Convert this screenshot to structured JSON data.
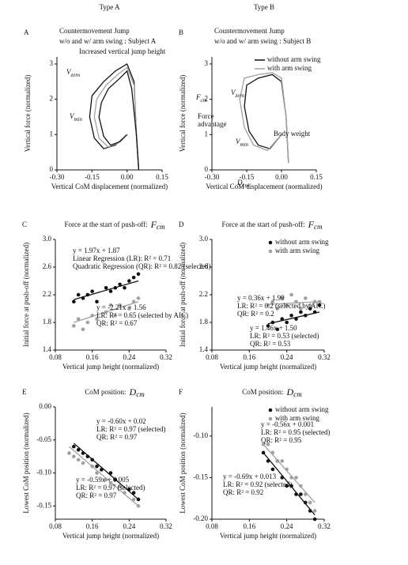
{
  "chart_data": [
    {
      "type": "line",
      "panel": "A",
      "header": "Type A",
      "title_lines": [
        "Countermovement Jump",
        "w/o and w/ arm swing : Subject A"
      ],
      "xlabel": "Vertical CoM displacement (normalized)",
      "ylabel": "Vertical force (normalized)",
      "xlim": [
        -0.3,
        0.15
      ],
      "ylim": [
        0,
        3.2
      ],
      "xticks": [
        {
          "value": -0.3,
          "label": "-0.30"
        },
        {
          "value": -0.15,
          "label": "-0.15"
        },
        {
          "value": 0,
          "label": "0.00"
        },
        {
          "value": 0.15,
          "label": "0.15"
        }
      ],
      "yticks": [
        0,
        1,
        2,
        3
      ],
      "series": [
        {
          "color": "#111111",
          "x": [
            0,
            -0.05,
            -0.1,
            -0.14,
            -0.16,
            -0.15,
            -0.1,
            -0.05,
            0,
            0.03,
            0.04,
            0.05
          ],
          "values": [
            1,
            0.7,
            0.6,
            0.9,
            1.5,
            2.1,
            2.5,
            2.8,
            3.0,
            2.5,
            1.0,
            0
          ]
        },
        {
          "color": "#a0a0a0",
          "x": [
            0,
            -0.04,
            -0.08,
            -0.12,
            -0.14,
            -0.13,
            -0.09,
            -0.04,
            0,
            0.03,
            0.04,
            0.05
          ],
          "values": [
            1,
            0.75,
            0.65,
            0.9,
            1.5,
            2.0,
            2.4,
            2.7,
            2.9,
            2.4,
            1.0,
            0
          ]
        },
        {
          "color": "#111111",
          "x": [
            0,
            -0.03,
            -0.07,
            -0.1,
            -0.12,
            -0.11,
            -0.08,
            -0.03,
            0,
            0.02,
            0.04,
            0.05
          ],
          "values": [
            1,
            0.8,
            0.7,
            0.95,
            1.5,
            1.9,
            2.3,
            2.6,
            2.8,
            2.3,
            1.0,
            0
          ]
        }
      ],
      "annotations": [
        {
          "text": "Increased vertical jump height"
        },
        {
          "text": "V",
          "sub": "zero"
        },
        {
          "text": "V",
          "sub": "min"
        }
      ]
    },
    {
      "type": "line",
      "panel": "B",
      "header": "Type B",
      "title_lines": [
        "Countermovement Jump",
        "w/o and w/ arm swing : Subject B"
      ],
      "xlabel": "Vertical CoM displacement (normalized)",
      "ylabel": "Vertical force (normalized)",
      "xlim": [
        -0.3,
        0.15
      ],
      "ylim": [
        0,
        3.2
      ],
      "xticks": [
        {
          "value": -0.3,
          "label": "-0.30"
        },
        {
          "value": -0.15,
          "label": "-0.15"
        },
        {
          "value": 0,
          "label": "0.00"
        },
        {
          "value": 0.15,
          "label": "0.15"
        }
      ],
      "yticks": [
        0,
        1,
        2,
        3
      ],
      "legend": "upper right",
      "series": [
        {
          "name": "without arm swing",
          "color": "#111111",
          "x": [
            0,
            -0.05,
            -0.1,
            -0.14,
            -0.16,
            -0.15,
            -0.1,
            -0.04,
            0,
            0.02,
            0.03
          ],
          "values": [
            1,
            0.6,
            0.7,
            1.1,
            1.8,
            2.4,
            2.6,
            2.7,
            2.5,
            1.5,
            0.2
          ]
        },
        {
          "name": "with arm swing",
          "color": "#a0a0a0",
          "x": [
            0,
            -0.06,
            -0.12,
            -0.16,
            -0.18,
            -0.16,
            -0.1,
            -0.04,
            0,
            0.02,
            0.03
          ],
          "values": [
            1,
            0.55,
            0.7,
            1.2,
            2.0,
            2.6,
            2.7,
            2.75,
            2.6,
            1.5,
            0.2
          ]
        }
      ],
      "annotations": [
        {
          "text": "F",
          "sub": "cm"
        },
        {
          "text": "V",
          "sub": "zero"
        },
        {
          "text": "Force"
        },
        {
          "text": "advantage"
        },
        {
          "text": "V",
          "sub": "min"
        },
        {
          "text": "Body weight"
        },
        {
          "text": "D",
          "sub": "cm"
        }
      ]
    },
    {
      "type": "scatter",
      "panel": "C",
      "title": "Force at the start of push-off:",
      "title_symbol": {
        "text": "F",
        "sub": "cm"
      },
      "xlabel": "Vertical jump height (normalized)",
      "ylabel": "Initial force at push-off (normalized)",
      "xlim": [
        0.08,
        0.32
      ],
      "ylim": [
        1.4,
        3.0
      ],
      "xticks": [
        0.08,
        0.16,
        0.24,
        0.32
      ],
      "yticks": [
        1.4,
        1.8,
        2.2,
        2.6,
        {
          "value": 3.0,
          "label": "3.0"
        }
      ],
      "series": [
        {
          "color": "#111111",
          "x": [
            0.12,
            0.13,
            0.14,
            0.15,
            0.16,
            0.17,
            0.19,
            0.2,
            0.21,
            0.22,
            0.23,
            0.24,
            0.25,
            0.26
          ],
          "values": [
            2.1,
            2.2,
            2.15,
            2.2,
            2.25,
            2.1,
            2.3,
            2.25,
            2.3,
            2.35,
            2.3,
            2.4,
            2.45,
            2.5
          ]
        },
        {
          "color": "#a0a0a0",
          "x": [
            0.12,
            0.13,
            0.14,
            0.15,
            0.16,
            0.17,
            0.19,
            0.2,
            0.21,
            0.22,
            0.24,
            0.25,
            0.26
          ],
          "values": [
            1.75,
            1.85,
            1.7,
            1.8,
            1.9,
            1.85,
            1.95,
            2.05,
            1.9,
            2.05,
            2.0,
            2.1,
            2.15
          ]
        }
      ],
      "fit_lines": [
        {
          "color": "#111111",
          "x": [
            0.12,
            0.26
          ],
          "values": [
            2.13,
            2.4
          ]
        },
        {
          "color": "#a0a0a0",
          "x": [
            0.12,
            0.26
          ],
          "values": [
            1.8,
            2.1
          ]
        }
      ],
      "annotations": [
        {
          "text": "y = 1.97x + 1.87"
        },
        {
          "text": "Linear Regression (LR): R² = 0.71"
        },
        {
          "text": "Quadratic Regression (QR): R² = 0.82 (selected)"
        },
        {
          "text": "y = -2.21x + 1.56"
        },
        {
          "text": "LR: R² = 0.65 (selected by AIC)"
        },
        {
          "text": "QR: R² = 0.67"
        }
      ]
    },
    {
      "type": "scatter",
      "panel": "D",
      "title": "Force at the start of push-off:",
      "title_symbol": {
        "text": "F",
        "sub": "cm"
      },
      "xlabel": "Vertical jump height (normalized)",
      "ylabel": "Initial force at push-off (normalized)",
      "xlim": [
        0.08,
        0.32
      ],
      "ylim": [
        1.4,
        3.0
      ],
      "xticks": [
        0.08,
        0.16,
        0.24,
        0.32
      ],
      "yticks": [
        1.4,
        1.8,
        2.2,
        2.6,
        {
          "value": 3.0,
          "label": "3.0"
        }
      ],
      "legend": "upper right",
      "series": [
        {
          "name": "without arm swing",
          "color": "#111111",
          "x": [
            0.2,
            0.21,
            0.22,
            0.23,
            0.24,
            0.25,
            0.26,
            0.27,
            0.28,
            0.29,
            0.3,
            0.31
          ],
          "values": [
            1.75,
            1.8,
            1.7,
            1.85,
            1.8,
            1.9,
            1.85,
            1.95,
            1.9,
            2.0,
            1.95,
            2.05
          ]
        },
        {
          "name": "with arm swing",
          "color": "#a0a0a0",
          "x": [
            0.2,
            0.21,
            0.22,
            0.23,
            0.24,
            0.25,
            0.26,
            0.27,
            0.28,
            0.29,
            0.3,
            0.31
          ],
          "values": [
            2.05,
            2.1,
            2.0,
            2.15,
            2.05,
            2.2,
            2.1,
            2.0,
            2.15,
            2.05,
            2.1,
            2.1
          ]
        }
      ],
      "fit_lines": [
        {
          "color": "#111111",
          "x": [
            0.2,
            0.31
          ],
          "values": [
            1.78,
            1.95
          ]
        },
        {
          "color": "#a0a0a0",
          "x": [
            0.2,
            0.31
          ],
          "values": [
            2.06,
            2.1
          ]
        }
      ],
      "annotations": [
        {
          "text": "y = 0.36x + 1.99"
        },
        {
          "text": "LR: R² = 0.2 (selected by AIC)"
        },
        {
          "text": "QR: R² = 0.2"
        },
        {
          "text": "y = 1.46x + 1.50"
        },
        {
          "text": "LR: R² = 0.53 (selected)"
        },
        {
          "text": "QR: R² = 0.53"
        }
      ]
    },
    {
      "type": "scatter",
      "panel": "E",
      "title": "CoM position:",
      "title_symbol": {
        "text": "D",
        "sub": "cm"
      },
      "xlabel": "Vertical jump height (normalized)",
      "ylabel": "Lowest CoM position (normalized)",
      "xlim": [
        0.08,
        0.32
      ],
      "ylim": [
        -0.17,
        0
      ],
      "xticks": [
        0.08,
        0.16,
        0.24,
        0.32
      ],
      "yticks": [
        {
          "value": 0,
          "label": "0.00"
        },
        {
          "value": -0.05,
          "label": "-0.05"
        },
        {
          "value": -0.1,
          "label": "-0.10"
        },
        {
          "value": -0.15,
          "label": "-0.15"
        }
      ],
      "series": [
        {
          "color": "#111111",
          "x": [
            0.12,
            0.13,
            0.14,
            0.15,
            0.16,
            0.17,
            0.18,
            0.2,
            0.21,
            0.22,
            0.24,
            0.25,
            0.26
          ],
          "values": [
            -0.06,
            -0.065,
            -0.07,
            -0.075,
            -0.08,
            -0.09,
            -0.095,
            -0.1,
            -0.11,
            -0.12,
            -0.125,
            -0.13,
            -0.14
          ]
        },
        {
          "color": "#a0a0a0",
          "x": [
            0.11,
            0.12,
            0.13,
            0.14,
            0.16,
            0.17,
            0.19,
            0.2,
            0.22,
            0.23,
            0.25,
            0.26
          ],
          "values": [
            -0.07,
            -0.075,
            -0.08,
            -0.085,
            -0.09,
            -0.1,
            -0.11,
            -0.115,
            -0.12,
            -0.13,
            -0.14,
            -0.15
          ]
        }
      ],
      "fit_lines": [
        {
          "color": "#111111",
          "x": [
            0.12,
            0.26
          ],
          "values": [
            -0.055,
            -0.14
          ]
        },
        {
          "color": "#a0a0a0",
          "x": [
            0.11,
            0.26
          ],
          "values": [
            -0.06,
            -0.15
          ]
        }
      ],
      "annotations": [
        {
          "text": "y = -0.60x + 0.02"
        },
        {
          "text": "LR: R² = 0.97 (selected)"
        },
        {
          "text": "QR: R² = 0.97"
        },
        {
          "text": "y = -0.59x + 0.005"
        },
        {
          "text": "LR: R² = 0.97 (selected)"
        },
        {
          "text": "QR: R² = 0.97"
        }
      ]
    },
    {
      "type": "scatter",
      "panel": "F",
      "title": "CoM position:",
      "title_symbol": {
        "text": "D",
        "sub": "cm"
      },
      "xlabel": "Vertical jump height (normalized)",
      "ylabel": "Lowest CoM position (normalized)",
      "xlim": [
        0.08,
        0.32
      ],
      "ylim": [
        -0.2,
        -0.065
      ],
      "xticks": [
        0.08,
        0.16,
        0.24,
        0.32
      ],
      "yticks": [
        {
          "value": -0.1,
          "label": "-0.10"
        },
        {
          "value": -0.15,
          "label": "-0.15"
        },
        {
          "value": -0.2,
          "label": "-0.20"
        }
      ],
      "legend": "upper right",
      "series": [
        {
          "name": "without arm swing",
          "color": "#111111",
          "x": [
            0.19,
            0.2,
            0.21,
            0.22,
            0.23,
            0.24,
            0.25,
            0.26,
            0.27,
            0.28,
            0.29,
            0.3
          ],
          "values": [
            -0.12,
            -0.13,
            -0.14,
            -0.13,
            -0.15,
            -0.16,
            -0.16,
            -0.17,
            -0.17,
            -0.18,
            -0.19,
            -0.2
          ]
        },
        {
          "name": "with arm swing",
          "color": "#a0a0a0",
          "x": [
            0.19,
            0.2,
            0.21,
            0.22,
            0.23,
            0.24,
            0.25,
            0.26,
            0.27,
            0.28,
            0.29,
            0.3
          ],
          "values": [
            -0.11,
            -0.11,
            -0.12,
            -0.13,
            -0.13,
            -0.14,
            -0.15,
            -0.15,
            -0.16,
            -0.17,
            -0.18,
            -0.19
          ]
        }
      ],
      "fit_lines": [
        {
          "color": "#111111",
          "x": [
            0.19,
            0.3
          ],
          "values": [
            -0.12,
            -0.195
          ]
        },
        {
          "color": "#a0a0a0",
          "x": [
            0.19,
            0.3
          ],
          "values": [
            -0.11,
            -0.18
          ]
        }
      ],
      "annotations": [
        {
          "text": "y = -0.56x + 0.001"
        },
        {
          "text": "LR: R² = 0.95 (selected)"
        },
        {
          "text": "QR: R² = 0.95"
        },
        {
          "text": "y = -0.69x + 0.013"
        },
        {
          "text": "LR: R² = 0.92 (selected)"
        },
        {
          "text": "QR: R² = 0.92"
        }
      ]
    }
  ]
}
